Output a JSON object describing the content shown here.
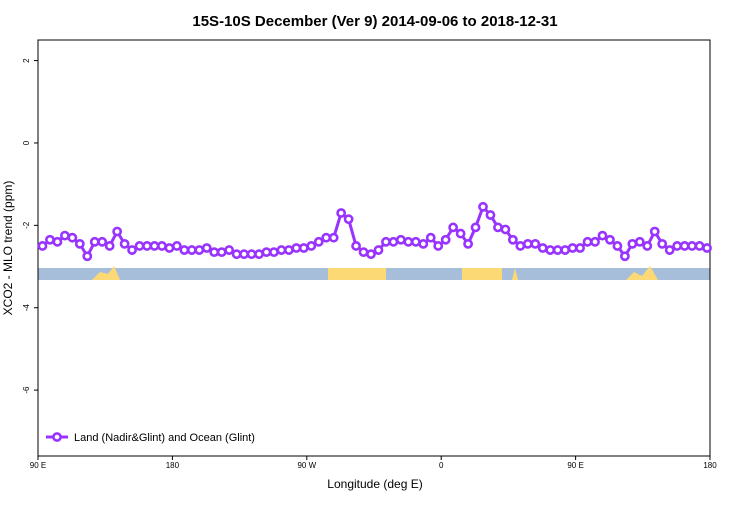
{
  "chart_data": {
    "type": "line",
    "title": "15S-10S December (Ver 9)   2014-09-06 to 2018-12-31",
    "x_label": "Longitude (deg E)",
    "y_label": "XCO2 - MLO trend (ppm)",
    "xlim": [
      90,
      540
    ],
    "ylim": [
      -7.6,
      2.5
    ],
    "xticks": [
      {
        "value": 90,
        "label": "90 E"
      },
      180,
      {
        "value": 270,
        "label": "90 W"
      },
      {
        "value": 360,
        "label": "0"
      },
      {
        "value": 450,
        "label": "90 E"
      },
      {
        "value": 540,
        "label": "180"
      }
    ],
    "yticks": [
      -6,
      -4,
      -2,
      0,
      2
    ],
    "legend": "bottom-left",
    "x": [
      93,
      98,
      103,
      108,
      113,
      118,
      123,
      128,
      133,
      138,
      143,
      148,
      153,
      158,
      163,
      168,
      173,
      178,
      183,
      188,
      193,
      198,
      203,
      208,
      213,
      218,
      223,
      228,
      233,
      238,
      243,
      248,
      253,
      258,
      263,
      268,
      273,
      278,
      283,
      288,
      293,
      298,
      303,
      308,
      313,
      318,
      323,
      328,
      333,
      338,
      343,
      348,
      353,
      358,
      363,
      368,
      373,
      378,
      383,
      388,
      393,
      398,
      403,
      408,
      413,
      418,
      423,
      428,
      433,
      438,
      443,
      448,
      453,
      458,
      463,
      468,
      473,
      478,
      483,
      488,
      493,
      498,
      503,
      508,
      513,
      518,
      523,
      528,
      533,
      538
    ],
    "series": [
      {
        "name": "Land (Nadir&Glint) and Ocean (Glint)",
        "color": "#9933ff",
        "values": [
          -2.5,
          -2.35,
          -2.4,
          -2.25,
          -2.3,
          -2.45,
          -2.75,
          -2.4,
          -2.4,
          -2.5,
          -2.15,
          -2.45,
          -2.6,
          -2.5,
          -2.5,
          -2.5,
          -2.5,
          -2.55,
          -2.5,
          -2.6,
          -2.6,
          -2.6,
          -2.55,
          -2.65,
          -2.65,
          -2.6,
          -2.7,
          -2.7,
          -2.7,
          -2.7,
          -2.65,
          -2.65,
          -2.6,
          -2.6,
          -2.55,
          -2.55,
          -2.5,
          -2.4,
          -2.3,
          -2.3,
          -1.7,
          -1.85,
          -2.5,
          -2.65,
          -2.7,
          -2.6,
          -2.4,
          -2.4,
          -2.35,
          -2.4,
          -2.4,
          -2.45,
          -2.3,
          -2.5,
          -2.35,
          -2.05,
          -2.2,
          -2.45,
          -2.05,
          -1.55,
          -1.75,
          -2.05,
          -2.1,
          -2.35,
          -2.5,
          -2.45,
          -2.45,
          -2.55,
          -2.6,
          -2.6,
          -2.6,
          -2.55,
          -2.55,
          -2.4,
          -2.4,
          -2.25,
          -2.35,
          -2.5,
          -2.75,
          -2.45,
          -2.4,
          -2.5,
          -2.15,
          -2.45,
          -2.6,
          -2.5,
          -2.5,
          -2.5,
          -2.5,
          -2.55
        ]
      }
    ]
  }
}
